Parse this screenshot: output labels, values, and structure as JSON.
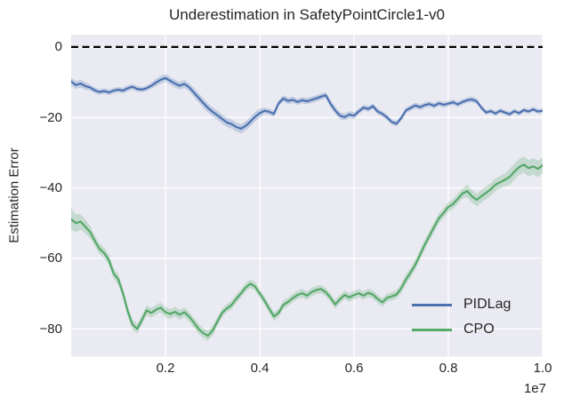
{
  "chart_data": {
    "type": "line",
    "title": "Underestimation in SafetyPointCircle1-v0",
    "xlabel": "",
    "ylabel": "Estimation Error",
    "x_offset_text": "1e7",
    "x_units": "timesteps (values in units of 1e7)",
    "xlim": [
      0.0,
      1.0
    ],
    "ylim": [
      -87.9,
      3.5
    ],
    "x_ticks": [
      0.2,
      0.4,
      0.6,
      0.8,
      1.0
    ],
    "x_tick_labels": [
      "0.2",
      "0.4",
      "0.6",
      "0.8",
      "1.0"
    ],
    "y_ticks": [
      0,
      -20,
      -40,
      -60,
      -80
    ],
    "y_tick_labels": [
      "0",
      "−20",
      "−40",
      "−60",
      "−80"
    ],
    "grid": true,
    "plot_background": "#EAEAF2",
    "grid_color": "#FFFFFF",
    "legend_position": "lower right",
    "zero_line": {
      "value": 0,
      "style": "dashed",
      "color": "#000000"
    },
    "x": [
      0.0,
      0.01,
      0.02,
      0.03,
      0.04,
      0.05,
      0.06,
      0.07,
      0.08,
      0.09,
      0.1,
      0.11,
      0.12,
      0.13,
      0.14,
      0.15,
      0.16,
      0.17,
      0.18,
      0.19,
      0.2,
      0.21,
      0.22,
      0.23,
      0.24,
      0.25,
      0.26,
      0.27,
      0.28,
      0.29,
      0.3,
      0.31,
      0.32,
      0.33,
      0.34,
      0.35,
      0.36,
      0.37,
      0.38,
      0.39,
      0.4,
      0.41,
      0.42,
      0.43,
      0.44,
      0.45,
      0.46,
      0.47,
      0.48,
      0.49,
      0.5,
      0.51,
      0.52,
      0.53,
      0.54,
      0.55,
      0.56,
      0.57,
      0.58,
      0.59,
      0.6,
      0.61,
      0.62,
      0.63,
      0.64,
      0.65,
      0.66,
      0.67,
      0.68,
      0.69,
      0.7,
      0.71,
      0.72,
      0.73,
      0.74,
      0.75,
      0.76,
      0.77,
      0.78,
      0.79,
      0.8,
      0.81,
      0.82,
      0.83,
      0.84,
      0.85,
      0.86,
      0.87,
      0.88,
      0.89,
      0.9,
      0.91,
      0.92,
      0.93,
      0.94,
      0.95,
      0.96,
      0.97,
      0.98,
      0.99,
      1.0
    ],
    "series": [
      {
        "name": "PIDLag",
        "color": "#4C72B0",
        "values": [
          -9.8,
          -10.8,
          -10.4,
          -11.1,
          -11.5,
          -12.3,
          -12.8,
          -12.5,
          -12.9,
          -12.4,
          -12.1,
          -12.4,
          -11.7,
          -11.3,
          -11.9,
          -12.1,
          -11.7,
          -11.0,
          -10.1,
          -9.3,
          -8.8,
          -9.6,
          -10.4,
          -11.0,
          -10.5,
          -11.4,
          -12.9,
          -14.4,
          -15.9,
          -17.3,
          -18.4,
          -19.4,
          -20.4,
          -21.4,
          -21.9,
          -22.7,
          -23.2,
          -22.4,
          -21.2,
          -19.8,
          -18.8,
          -18.1,
          -18.4,
          -19.0,
          -16.0,
          -14.6,
          -15.3,
          -15.0,
          -15.6,
          -15.1,
          -15.4,
          -15.0,
          -14.6,
          -14.1,
          -13.7,
          -16.1,
          -18.0,
          -19.5,
          -19.9,
          -19.2,
          -19.5,
          -18.3,
          -17.2,
          -17.6,
          -16.8,
          -18.3,
          -19.0,
          -20.0,
          -21.3,
          -21.8,
          -20.2,
          -18.0,
          -17.3,
          -16.6,
          -17.1,
          -16.5,
          -16.2,
          -16.7,
          -16.0,
          -16.4,
          -16.1,
          -15.7,
          -16.3,
          -15.6,
          -15.1,
          -14.9,
          -15.4,
          -17.2,
          -18.6,
          -18.2,
          -18.9,
          -18.1,
          -18.6,
          -19.1,
          -18.2,
          -18.8,
          -17.9,
          -18.3,
          -17.7,
          -18.3,
          -18.1
        ],
        "band": [
          1.1,
          1.1,
          1.1,
          1.1,
          0.8,
          0.8,
          0.8,
          0.8,
          0.8,
          0.8,
          0.8,
          0.8,
          0.8,
          0.8,
          0.8,
          0.8,
          0.8,
          0.8,
          1.1,
          1.1,
          1.1,
          1.1,
          1.1,
          1.1,
          1.1,
          1.1,
          1.3,
          1.3,
          1.3,
          1.3,
          1.3,
          1.3,
          1.3,
          1.3,
          1.3,
          1.3,
          1.3,
          1.3,
          1.3,
          1.3,
          1.3,
          0.9,
          0.9,
          0.9,
          0.9,
          0.9,
          0.9,
          0.9,
          0.9,
          0.9,
          0.9,
          0.9,
          0.9,
          0.9,
          0.9,
          1.0,
          1.0,
          1.0,
          1.0,
          1.0,
          1.0,
          0.8,
          0.8,
          0.8,
          0.8,
          0.8,
          0.8,
          0.8,
          0.8,
          0.8,
          0.8,
          0.8,
          0.8,
          0.8,
          0.8,
          0.8,
          0.8,
          0.8,
          0.8,
          0.8,
          0.8,
          0.8,
          0.8,
          0.8,
          0.8,
          0.8,
          0.8,
          0.7,
          0.7,
          0.7,
          0.7,
          0.7,
          0.7,
          0.7,
          0.7,
          0.7,
          0.7,
          0.7,
          0.7,
          0.7,
          0.7
        ]
      },
      {
        "name": "CPO",
        "color": "#55A868",
        "values": [
          -48.9,
          -50.0,
          -49.6,
          -51.0,
          -52.5,
          -55.0,
          -57.3,
          -58.5,
          -60.5,
          -64.3,
          -66.0,
          -70.0,
          -75.0,
          -78.8,
          -80.0,
          -77.5,
          -74.8,
          -75.5,
          -74.6,
          -74.0,
          -75.3,
          -75.8,
          -75.2,
          -76.0,
          -75.3,
          -76.5,
          -78.2,
          -80.0,
          -81.2,
          -82.0,
          -80.5,
          -78.0,
          -75.5,
          -74.2,
          -73.3,
          -71.5,
          -70.0,
          -68.3,
          -67.2,
          -68.0,
          -70.0,
          -72.0,
          -74.3,
          -76.5,
          -75.5,
          -73.2,
          -72.4,
          -71.3,
          -70.4,
          -69.9,
          -70.6,
          -69.6,
          -69.0,
          -68.7,
          -69.6,
          -71.2,
          -73.1,
          -71.6,
          -70.4,
          -71.1,
          -70.4,
          -69.9,
          -70.6,
          -69.8,
          -70.3,
          -71.5,
          -72.5,
          -71.2,
          -70.8,
          -70.3,
          -68.5,
          -66.0,
          -64.0,
          -61.8,
          -59.0,
          -56.1,
          -53.6,
          -51.1,
          -48.6,
          -47.1,
          -45.4,
          -44.6,
          -43.1,
          -41.6,
          -40.9,
          -42.4,
          -43.4,
          -42.4,
          -41.4,
          -40.4,
          -39.1,
          -38.4,
          -37.7,
          -36.9,
          -35.4,
          -34.1,
          -33.4,
          -34.4,
          -33.9,
          -34.6,
          -33.6
        ],
        "band": [
          3.0,
          2.6,
          2.2,
          2.0,
          1.8,
          1.5,
          1.5,
          1.5,
          1.5,
          1.5,
          1.5,
          1.5,
          1.5,
          1.4,
          1.4,
          1.4,
          1.4,
          1.4,
          1.4,
          1.4,
          1.4,
          1.4,
          1.4,
          1.4,
          1.4,
          1.4,
          1.4,
          1.4,
          1.4,
          1.4,
          1.4,
          1.2,
          1.2,
          1.2,
          1.2,
          1.2,
          1.2,
          1.2,
          1.2,
          1.2,
          1.2,
          1.2,
          1.2,
          1.2,
          1.2,
          1.2,
          1.2,
          1.2,
          1.2,
          1.2,
          1.2,
          1.2,
          1.2,
          1.2,
          1.2,
          1.2,
          1.2,
          1.2,
          1.2,
          1.2,
          1.2,
          1.2,
          1.2,
          1.2,
          1.2,
          1.2,
          1.2,
          1.2,
          1.2,
          1.2,
          1.4,
          1.4,
          1.4,
          1.4,
          1.4,
          1.4,
          1.4,
          1.4,
          1.4,
          1.4,
          1.4,
          1.4,
          1.4,
          1.4,
          1.8,
          1.8,
          1.8,
          1.8,
          1.8,
          1.8,
          1.8,
          1.8,
          1.8,
          2.3,
          2.3,
          2.3,
          2.3,
          2.3,
          2.3,
          2.3,
          2.3
        ]
      }
    ]
  }
}
